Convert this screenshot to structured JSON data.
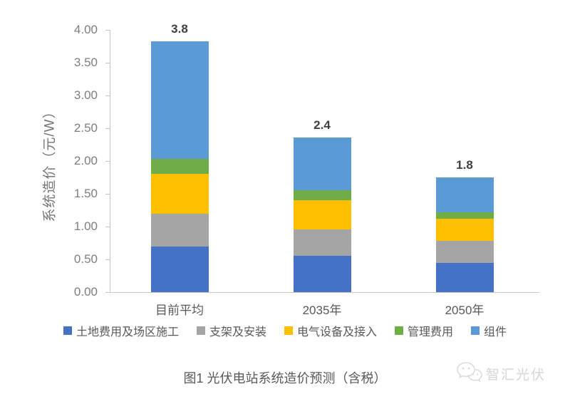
{
  "chart_data": {
    "type": "bar",
    "stacked": true,
    "title": "",
    "ylabel": "系统造价（元/W）",
    "xlabel": "",
    "ylim": [
      0,
      4
    ],
    "ytick_step": 0.5,
    "grid": false,
    "legend_position": "bottom",
    "categories": [
      "目前平均",
      "2035年",
      "2050年"
    ],
    "series": [
      {
        "name": "土地费用及场区施工",
        "color": "#4472C4",
        "values": [
          0.7,
          0.55,
          0.45
        ]
      },
      {
        "name": "支架及安装",
        "color": "#A5A5A5",
        "values": [
          0.5,
          0.41,
          0.33
        ]
      },
      {
        "name": "电气设备及接入",
        "color": "#FFC000",
        "values": [
          0.6,
          0.44,
          0.34
        ]
      },
      {
        "name": "管理费用",
        "color": "#70AD47",
        "values": [
          0.23,
          0.15,
          0.1
        ]
      },
      {
        "name": "组件",
        "color": "#5B9BD5",
        "values": [
          1.8,
          0.81,
          0.53
        ]
      }
    ],
    "totals": [
      3.83,
      2.36,
      1.75
    ],
    "total_labels": [
      "3.8",
      "2.4",
      "1.8"
    ]
  },
  "caption": "图1 光伏电站系统造价预测（含税）",
  "watermark": {
    "text": "智汇光伏",
    "icon": "wechat-chat-bubbles-icon"
  },
  "style_colors": {
    "axis_line": "#C6C6C6",
    "tick_label": "#7F7F7F",
    "category_label": "#595959",
    "value_label": "#404040",
    "legend_label": "#595959",
    "caption_text": "#595959",
    "watermark_text": "#D7D7D7"
  }
}
